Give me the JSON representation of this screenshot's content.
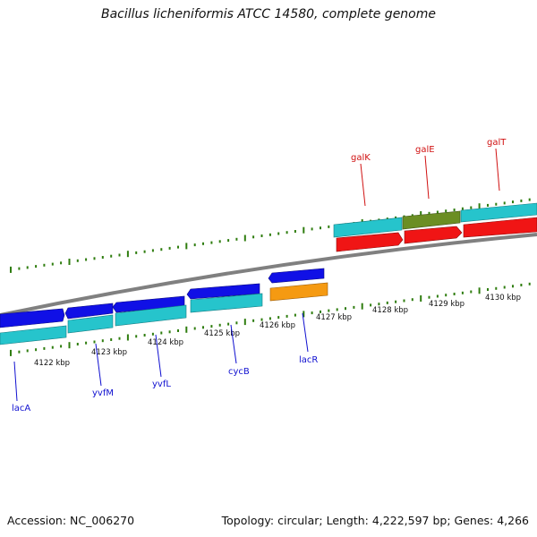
{
  "title": "Bacillus licheniformis ATCC 14580, complete genome",
  "footer": {
    "accession": "Accession: NC_006270",
    "summary": "Topology: circular; Length: 4,222,597 bp; Genes: 4,266"
  },
  "colors": {
    "backbone": "#808080",
    "tick": "#2f7d0f",
    "gene_blue": "#1010e6",
    "gene_cyan": "#26c4cc",
    "gene_red": "#f01515",
    "gene_orange": "#f59a12",
    "gene_olive": "#6b8e23",
    "label_blue": "#1010d0",
    "label_red": "#d01010"
  },
  "scale_labels": [
    "4122 kbp",
    "4123 kbp",
    "4124 kbp",
    "4125 kbp",
    "4126 kbp",
    "4127 kbp",
    "4128 kbp",
    "4129 kbp",
    "4130 kbp"
  ],
  "gene_labels": {
    "lacA": "lacA",
    "yvfM": "yvfM",
    "yvfL": "yvfL",
    "cycB": "cycB",
    "lacR": "lacR",
    "galK": "galK",
    "galE": "galE",
    "galT": "galT"
  }
}
